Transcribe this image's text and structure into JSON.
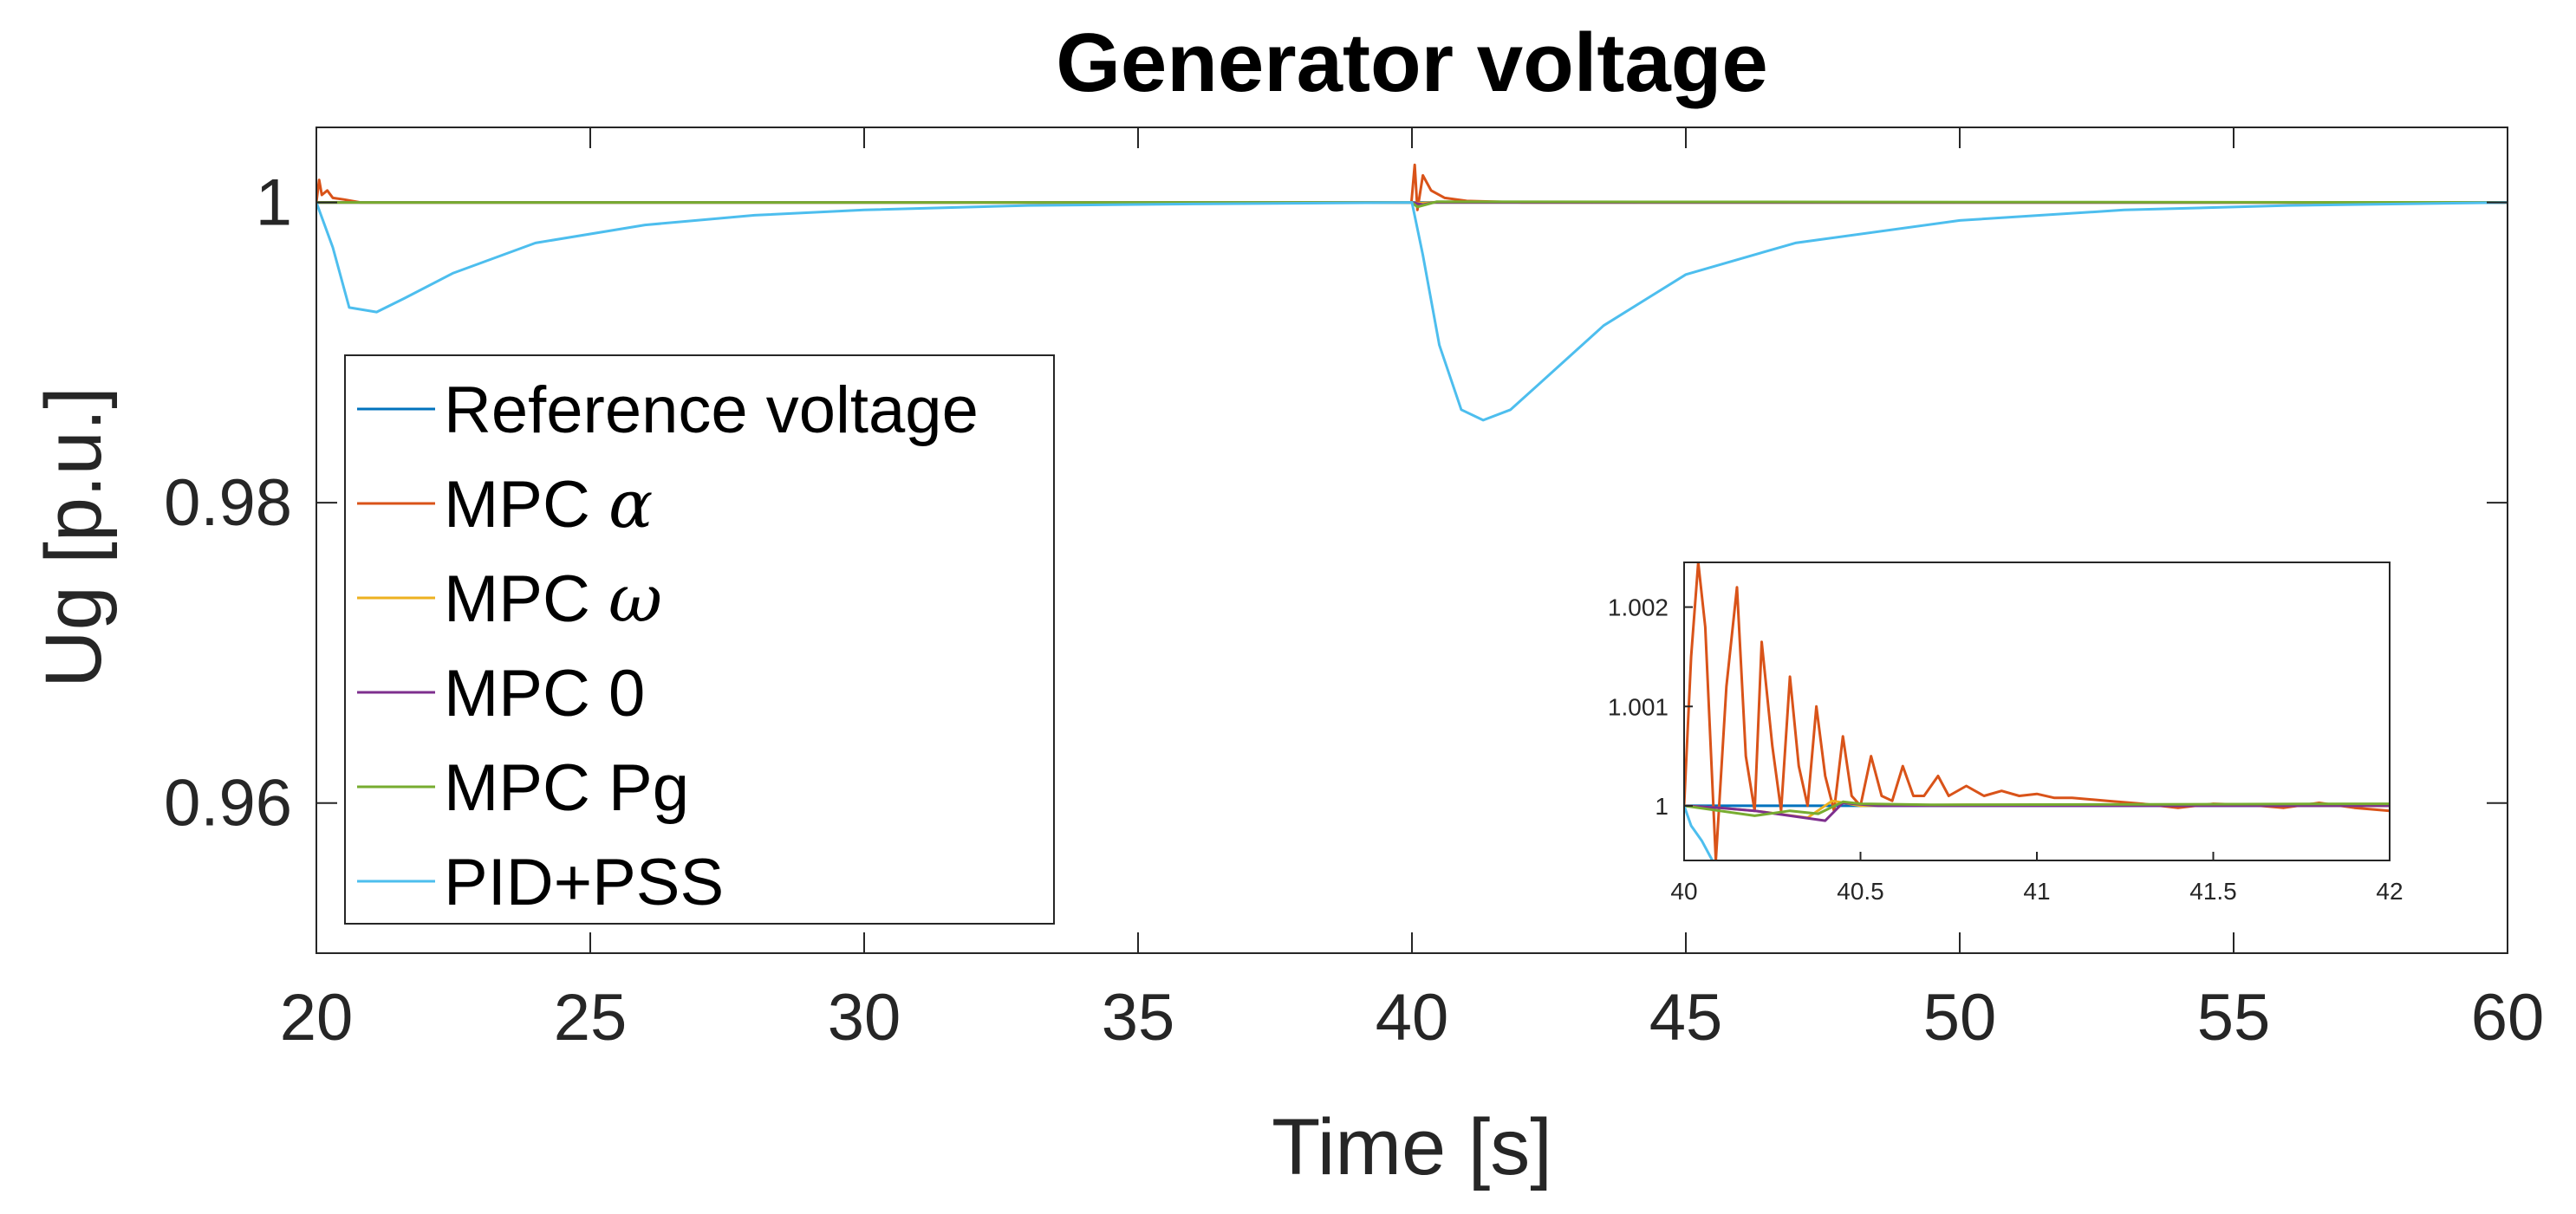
{
  "chart_data": [
    {
      "type": "line",
      "title": "Generator voltage",
      "xlabel": "Time [s]",
      "ylabel": "Ug [p.u.]",
      "xlim": [
        20,
        60
      ],
      "ylim": [
        0.95,
        1.005
      ],
      "x_ticks": [
        20,
        25,
        30,
        35,
        40,
        45,
        50,
        55,
        60
      ],
      "y_ticks": [
        0.96,
        0.98,
        1
      ],
      "x_tick_labels": [
        "20",
        "25",
        "30",
        "35",
        "40",
        "45",
        "50",
        "55",
        "60"
      ],
      "y_tick_labels": [
        "0.96",
        "0.98",
        "1"
      ],
      "legend_position": "center-left",
      "series": [
        {
          "name": "Reference voltage",
          "color": "#0072BD",
          "x": [
            20,
            40,
            60
          ],
          "y": [
            1,
            1,
            1
          ]
        },
        {
          "name": "MPC α",
          "legend_text": "MPC ",
          "legend_symbol": "α",
          "color": "#D95319",
          "x": [
            20,
            20.05,
            20.1,
            20.2,
            20.3,
            20.5,
            20.8,
            39.99,
            40.05,
            40.1,
            40.2,
            40.35,
            40.6,
            41,
            42,
            60
          ],
          "y": [
            1,
            1.0015,
            1.0005,
            1.0008,
            1.0003,
            1.0002,
            1,
            1,
            1.0025,
            0.9995,
            1.0018,
            1.0008,
            1.0003,
            1.0001,
            1,
            1
          ]
        },
        {
          "name": "MPC ω",
          "legend_text": "MPC ",
          "legend_symbol": "ω",
          "color": "#EDB120",
          "x": [
            20,
            40,
            40.1,
            40.4,
            60
          ],
          "y": [
            1,
            1,
            0.99995,
            1,
            1
          ]
        },
        {
          "name": "MPC 0",
          "legend_text": "MPC 0",
          "color": "#7E2F8E",
          "x": [
            20,
            40,
            40.2,
            40.4,
            60
          ],
          "y": [
            1,
            1,
            0.99985,
            1,
            1
          ]
        },
        {
          "name": "MPC Pg",
          "legend_text": "MPC Pg",
          "color": "#77AC30",
          "x": [
            20,
            40,
            40.1,
            40.45,
            60
          ],
          "y": [
            1,
            1,
            0.9997,
            1.00005,
            1
          ]
        },
        {
          "name": "PID+PSS",
          "legend_text": "PID+PSS",
          "color": "#4DBEEE",
          "x": [
            20,
            20.3,
            20.6,
            21.1,
            21.6,
            22.5,
            24,
            26,
            28,
            30,
            33,
            36,
            40,
            40.2,
            40.5,
            40.9,
            41.3,
            41.8,
            42.5,
            43.5,
            45,
            47,
            50,
            53,
            56,
            60
          ],
          "y": [
            1,
            0.997,
            0.993,
            0.9927,
            0.9936,
            0.9953,
            0.9973,
            0.9985,
            0.99915,
            0.9995,
            0.9998,
            0.9999,
            1,
            0.9965,
            0.9905,
            0.9862,
            0.9855,
            0.9862,
            0.9885,
            0.9918,
            0.9952,
            0.9973,
            0.9988,
            0.9995,
            0.9998,
            1
          ]
        }
      ]
    },
    {
      "type": "line",
      "title": "",
      "xlabel": "",
      "ylabel": "",
      "xlim": [
        40,
        42
      ],
      "ylim": [
        0.99945,
        1.00245
      ],
      "x_ticks": [
        40,
        40.5,
        41,
        41.5,
        42
      ],
      "y_ticks": [
        1,
        1.001,
        1.002
      ],
      "x_tick_labels": [
        "40",
        "40.5",
        "41",
        "41.5",
        "42"
      ],
      "y_tick_labels": [
        "1",
        "1.001",
        "1.002"
      ],
      "series": [
        {
          "name": "Reference voltage",
          "color": "#0072BD",
          "x": [
            40,
            42
          ],
          "y": [
            1,
            1
          ]
        },
        {
          "name": "MPC α",
          "color": "#D95319",
          "x": [
            40,
            40.02,
            40.04,
            40.06,
            40.09,
            40.12,
            40.15,
            40.175,
            40.2,
            40.22,
            40.25,
            40.275,
            40.3,
            40.325,
            40.35,
            40.375,
            40.4,
            40.425,
            40.45,
            40.475,
            40.5,
            40.53,
            40.56,
            40.59,
            40.62,
            40.65,
            40.68,
            40.72,
            40.75,
            40.8,
            40.85,
            40.9,
            40.95,
            41,
            41.05,
            41.1,
            41.2,
            41.3,
            41.4,
            41.5,
            41.6,
            41.7,
            41.8,
            41.9,
            42
          ],
          "y": [
            1,
            1.0015,
            1.00245,
            1.0018,
            0.99945,
            1.0012,
            1.0022,
            1.0005,
            0.99995,
            1.00165,
            1.0006,
            0.99995,
            1.0013,
            1.0004,
            1,
            1.001,
            1.0003,
            0.99995,
            1.0007,
            1.0001,
            1,
            1.0005,
            1.0001,
            1.00005,
            1.0004,
            1.0001,
            1.0001,
            1.0003,
            1.0001,
            1.0002,
            1.0001,
            1.00015,
            1.0001,
            1.00012,
            1.00008,
            1.00008,
            1.00005,
            1.00002,
            0.99998,
            1.00002,
            1.00001,
            0.99998,
            1.00003,
            0.99998,
            0.99995
          ]
        },
        {
          "name": "MPC ω",
          "color": "#EDB120",
          "x": [
            40,
            40.1,
            40.2,
            40.35,
            40.42,
            40.5,
            40.8,
            42
          ],
          "y": [
            1,
            0.99998,
            0.99995,
            0.99988,
            1.00005,
            1,
            1.00001,
            1
          ]
        },
        {
          "name": "MPC 0",
          "color": "#7E2F8E",
          "x": [
            40,
            40.1,
            40.2,
            40.3,
            40.4,
            40.45,
            40.55,
            40.8,
            42
          ],
          "y": [
            1,
            0.99998,
            0.99995,
            0.9999,
            0.99985,
            1.00003,
            1,
            1,
            1
          ]
        },
        {
          "name": "MPC Pg",
          "color": "#77AC30",
          "x": [
            40,
            40.1,
            40.2,
            40.3,
            40.38,
            40.45,
            40.5,
            40.7,
            42
          ],
          "y": [
            1,
            0.99995,
            0.9999,
            0.99995,
            0.99992,
            1.00004,
            1.00002,
            1.00001,
            1.00002
          ]
        },
        {
          "name": "PID+PSS",
          "color": "#4DBEEE",
          "x": [
            40,
            40.02,
            40.05,
            40.08
          ],
          "y": [
            1,
            0.9998,
            0.99965,
            0.99945
          ]
        }
      ]
    }
  ]
}
